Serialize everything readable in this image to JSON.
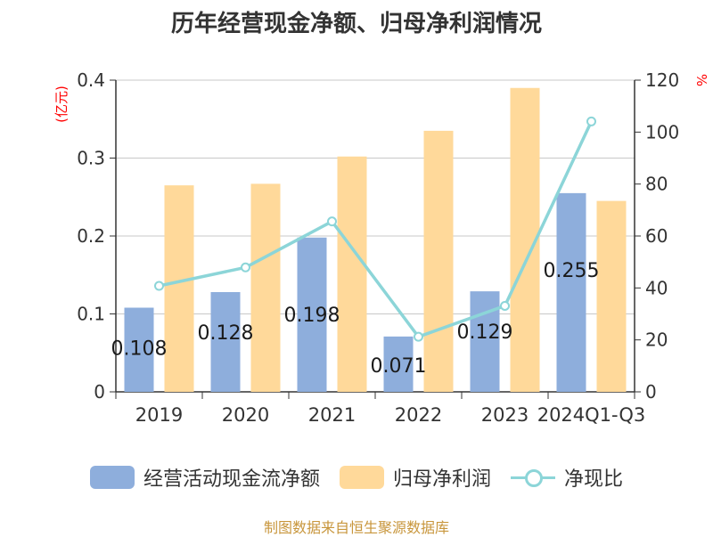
{
  "title": "历年经营现金净额、归母净利润情况",
  "source": "制图数据来自恒生聚源数据库",
  "colors": {
    "bar1": "#8eaedc",
    "bar2": "#ffd99a",
    "line": "#8cd5d8",
    "axis_unit": "#ff0000",
    "source": "#c8963c",
    "grid": "#c8c8c8",
    "axis": "#333333"
  },
  "legend": {
    "series1": "经营活动现金流净额",
    "series2": "归母净利润",
    "series3": "净现比"
  },
  "chart_data": {
    "type": "bar",
    "title": "历年经营现金净额、归母净利润情况",
    "categories": [
      "2019",
      "2020",
      "2021",
      "2022",
      "2023",
      "2024Q1-Q3"
    ],
    "y_left": {
      "unit": "(亿元)",
      "ylim": [
        0,
        0.4
      ],
      "ticks": [
        "0",
        "0.1",
        "0.2",
        "0.3",
        "0.4"
      ]
    },
    "y_right": {
      "unit": "%",
      "ylim": [
        0,
        120
      ],
      "ticks": [
        "0",
        "20",
        "40",
        "60",
        "80",
        "100",
        "120"
      ]
    },
    "grid": true,
    "legend_position": "bottom",
    "series": [
      {
        "name": "经营活动现金流净额",
        "type": "bar",
        "axis": "left",
        "values": [
          0.108,
          0.128,
          0.198,
          0.071,
          0.129,
          0.255
        ],
        "labels": [
          "0.108",
          "0.128",
          "0.198",
          "0.071",
          "0.129",
          "0.255"
        ]
      },
      {
        "name": "归母净利润",
        "type": "bar",
        "axis": "left",
        "values": [
          0.265,
          0.267,
          0.302,
          0.335,
          0.39,
          0.245
        ]
      },
      {
        "name": "净现比",
        "type": "line",
        "axis": "right",
        "values": [
          40.8,
          47.9,
          65.6,
          21.2,
          33.1,
          104.1
        ]
      }
    ]
  }
}
